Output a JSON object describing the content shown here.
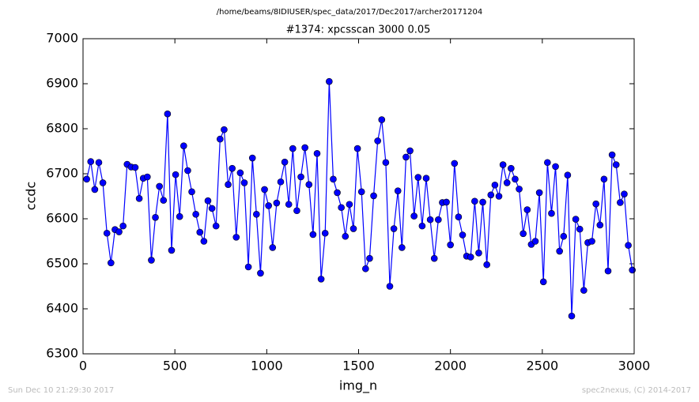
{
  "chart_data": {
    "type": "line",
    "suptitle": "/home/beams/8IDIUSER/spec_data/2017/Dec2017/archer20171204",
    "title": "#1374: xpcsscan 3000 0.05",
    "xlabel": "img_n",
    "ylabel": "ccdc",
    "footer_left": "Sun Dec 10 21:29:30 2017",
    "footer_right": "spec2nexus, (C) 2014-2017",
    "color": "#0000ff",
    "xlim": [
      0,
      3000
    ],
    "xticks": [
      0,
      500,
      1000,
      1500,
      2000,
      2500,
      3000
    ],
    "ylim": [
      6300,
      7000
    ],
    "yticks": [
      6300,
      6400,
      6500,
      6600,
      6700,
      6800,
      6900,
      7000
    ],
    "x": [
      20,
      42,
      64,
      86,
      108,
      130,
      152,
      174,
      196,
      218,
      240,
      262,
      284,
      306,
      328,
      350,
      372,
      394,
      416,
      438,
      460,
      482,
      504,
      526,
      548,
      570,
      592,
      614,
      636,
      658,
      680,
      702,
      724,
      746,
      768,
      790,
      812,
      834,
      856,
      878,
      900,
      922,
      944,
      966,
      988,
      1010,
      1032,
      1054,
      1076,
      1098,
      1120,
      1142,
      1164,
      1186,
      1208,
      1230,
      1252,
      1274,
      1296,
      1318,
      1340,
      1362,
      1384,
      1406,
      1428,
      1450,
      1472,
      1494,
      1516,
      1538,
      1560,
      1582,
      1604,
      1626,
      1648,
      1670,
      1692,
      1714,
      1736,
      1758,
      1780,
      1802,
      1824,
      1846,
      1868,
      1890,
      1912,
      1934,
      1956,
      1978,
      2000,
      2022,
      2044,
      2066,
      2088,
      2110,
      2132,
      2154,
      2176,
      2198,
      2220,
      2242,
      2264,
      2286,
      2308,
      2330,
      2352,
      2374,
      2396,
      2418,
      2440,
      2462,
      2484,
      2506,
      2528,
      2550,
      2572,
      2594,
      2616,
      2638,
      2660,
      2682,
      2704,
      2726,
      2748,
      2770,
      2792,
      2814,
      2836,
      2858,
      2880,
      2902,
      2924,
      2946,
      2968,
      2990
    ],
    "values": [
      6688,
      6727,
      6665,
      6725,
      6680,
      6568,
      6502,
      6576,
      6571,
      6584,
      6721,
      6715,
      6714,
      6645,
      6690,
      6693,
      6508,
      6603,
      6672,
      6641,
      6833,
      6530,
      6698,
      6605,
      6762,
      6707,
      6660,
      6610,
      6570,
      6550,
      6640,
      6623,
      6584,
      6777,
      6798,
      6676,
      6712,
      6559,
      6702,
      6680,
      6493,
      6735,
      6610,
      6479,
      6665,
      6629,
      6536,
      6635,
      6682,
      6726,
      6632,
      6756,
      6618,
      6693,
      6758,
      6676,
      6565,
      6745,
      6466,
      6568,
      6905,
      6688,
      6658,
      6625,
      6561,
      6632,
      6578,
      6756,
      6660,
      6489,
      6512,
      6651,
      6773,
      6820,
      6725,
      6450,
      6578,
      6662,
      6536,
      6737,
      6751,
      6606,
      6692,
      6584,
      6690,
      6598,
      6512,
      6598,
      6636,
      6637,
      6542,
      6723,
      6604,
      6564,
      6517,
      6515,
      6639,
      6524,
      6637,
      6498,
      6653,
      6675,
      6650,
      6720,
      6680,
      6712,
      6688,
      6666,
      6567,
      6620,
      6543,
      6550,
      6658,
      6460,
      6725,
      6612,
      6716,
      6528,
      6561,
      6697,
      6384,
      6599,
      6577,
      6441,
      6547,
      6550,
      6633,
      6586,
      6688,
      6484,
      6742,
      6720,
      6636,
      6655,
      6541,
      6486
    ]
  }
}
